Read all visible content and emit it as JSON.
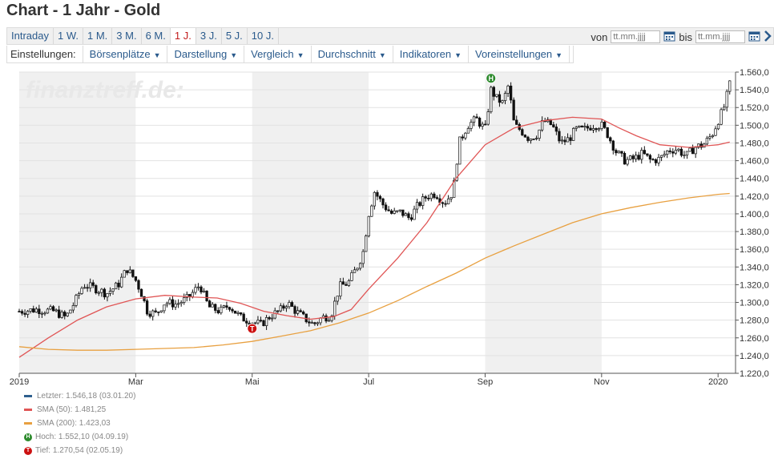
{
  "page": {
    "title": "Chart - 1 Jahr - Gold"
  },
  "range_tabs": [
    "Intraday",
    "1 W.",
    "1 M.",
    "3 M.",
    "6 M.",
    "1 J.",
    "3 J.",
    "5 J.",
    "10 J."
  ],
  "active_range": "1 J.",
  "date_filter": {
    "from_label": "von",
    "to_label": "bis",
    "placeholder": "tt.mm.jjjj"
  },
  "settings": {
    "label": "Einstellungen:",
    "menus": [
      "Börsenplätze",
      "Darstellung",
      "Vergleich",
      "Durchschnitt",
      "Indikatoren",
      "Voreinstellungen"
    ]
  },
  "watermark": "finanztreff.de:",
  "colors": {
    "candle": "#111111",
    "sma50": "#e05555",
    "sma200": "#e8a040",
    "last": "#2e5f8e",
    "high_badge": "#2c8a2c",
    "low_badge": "#cc1111",
    "band": "#f0f0f0"
  },
  "legend": [
    {
      "key": "last",
      "text": "Letzter: 1.546,18 (03.01.20)"
    },
    {
      "key": "sma50",
      "text": "SMA (50): 1.481,25"
    },
    {
      "key": "sma200",
      "text": "SMA (200): 1.423,03"
    },
    {
      "key": "high",
      "badge": "H",
      "text": "Hoch: 1.552,10 (04.09.19)"
    },
    {
      "key": "low",
      "badge": "T",
      "text": "Tief: 1.270,54 (02.05.19)"
    }
  ],
  "chart_data": {
    "type": "line",
    "style": "candlestick",
    "x_range": [
      0,
      12.3
    ],
    "ylim": [
      1220,
      1560
    ],
    "y_ticks": [
      1220,
      1240,
      1260,
      1280,
      1300,
      1320,
      1340,
      1360,
      1380,
      1400,
      1420,
      1440,
      1460,
      1480,
      1500,
      1520,
      1540,
      1560
    ],
    "y_tick_labels": [
      "1.220,0",
      "1.240,0",
      "1.260,0",
      "1.280,0",
      "1.300,0",
      "1.320,0",
      "1.340,0",
      "1.360,0",
      "1.380,0",
      "1.400,0",
      "1.420,0",
      "1.440,0",
      "1.460,0",
      "1.480,0",
      "1.500,0",
      "1.520,0",
      "1.540,0",
      "1.560,0"
    ],
    "x_ticks": [
      {
        "x": 0,
        "label": "2019"
      },
      {
        "x": 2,
        "label": "Mar"
      },
      {
        "x": 4,
        "label": "Mai"
      },
      {
        "x": 6,
        "label": "Jul"
      },
      {
        "x": 8,
        "label": "Sep"
      },
      {
        "x": 10,
        "label": "Nov"
      },
      {
        "x": 12,
        "label": "2020"
      }
    ],
    "shaded_months": [
      [
        0,
        2
      ],
      [
        4,
        6
      ],
      [
        8,
        10
      ]
    ],
    "series": [
      {
        "name": "Letzter",
        "points": [
          [
            0,
            1290
          ],
          [
            0.3,
            1292
          ],
          [
            0.6,
            1290
          ],
          [
            0.8,
            1283
          ],
          [
            0.95,
            1300
          ],
          [
            1.1,
            1320
          ],
          [
            1.3,
            1316
          ],
          [
            1.5,
            1310
          ],
          [
            1.7,
            1320
          ],
          [
            1.85,
            1338
          ],
          [
            2.0,
            1325
          ],
          [
            2.1,
            1310
          ],
          [
            2.2,
            1290
          ],
          [
            2.35,
            1287
          ],
          [
            2.5,
            1300
          ],
          [
            2.7,
            1298
          ],
          [
            2.9,
            1305
          ],
          [
            3.1,
            1320
          ],
          [
            3.25,
            1295
          ],
          [
            3.45,
            1290
          ],
          [
            3.6,
            1297
          ],
          [
            3.8,
            1283
          ],
          [
            4.0,
            1278
          ],
          [
            4.15,
            1275
          ],
          [
            4.3,
            1284
          ],
          [
            4.5,
            1292
          ],
          [
            4.6,
            1300
          ],
          [
            4.75,
            1290
          ],
          [
            4.9,
            1282
          ],
          [
            5.05,
            1275
          ],
          [
            5.2,
            1283
          ],
          [
            5.35,
            1285
          ],
          [
            5.5,
            1318
          ],
          [
            5.65,
            1322
          ],
          [
            5.8,
            1340
          ],
          [
            5.9,
            1355
          ],
          [
            6.0,
            1400
          ],
          [
            6.1,
            1425
          ],
          [
            6.25,
            1410
          ],
          [
            6.4,
            1400
          ],
          [
            6.55,
            1402
          ],
          [
            6.7,
            1395
          ],
          [
            6.85,
            1410
          ],
          [
            7.0,
            1420
          ],
          [
            7.15,
            1423
          ],
          [
            7.3,
            1412
          ],
          [
            7.45,
            1425
          ],
          [
            7.55,
            1480
          ],
          [
            7.7,
            1500
          ],
          [
            7.85,
            1507
          ],
          [
            8.0,
            1495
          ],
          [
            8.1,
            1540
          ],
          [
            8.2,
            1530
          ],
          [
            8.3,
            1525
          ],
          [
            8.4,
            1545
          ],
          [
            8.5,
            1500
          ],
          [
            8.6,
            1495
          ],
          [
            8.75,
            1485
          ],
          [
            8.9,
            1490
          ],
          [
            9.0,
            1505
          ],
          [
            9.15,
            1500
          ],
          [
            9.3,
            1480
          ],
          [
            9.45,
            1485
          ],
          [
            9.55,
            1495
          ],
          [
            9.7,
            1495
          ],
          [
            9.85,
            1500
          ],
          [
            10.0,
            1500
          ],
          [
            10.1,
            1490
          ],
          [
            10.25,
            1470
          ],
          [
            10.4,
            1460
          ],
          [
            10.55,
            1462
          ],
          [
            10.7,
            1468
          ],
          [
            10.85,
            1460
          ],
          [
            11.0,
            1462
          ],
          [
            11.15,
            1472
          ],
          [
            11.3,
            1473
          ],
          [
            11.45,
            1465
          ],
          [
            11.6,
            1475
          ],
          [
            11.75,
            1478
          ],
          [
            11.9,
            1490
          ],
          [
            12.0,
            1505
          ],
          [
            12.1,
            1520
          ],
          [
            12.2,
            1546
          ]
        ]
      },
      {
        "name": "SMA (50)",
        "points": [
          [
            0,
            1238
          ],
          [
            0.5,
            1260
          ],
          [
            1.0,
            1280
          ],
          [
            1.5,
            1295
          ],
          [
            2.0,
            1304
          ],
          [
            2.5,
            1308
          ],
          [
            3.0,
            1306
          ],
          [
            3.4,
            1305
          ],
          [
            3.8,
            1299
          ],
          [
            4.2,
            1290
          ],
          [
            4.6,
            1285
          ],
          [
            5.0,
            1281
          ],
          [
            5.4,
            1284
          ],
          [
            5.7,
            1292
          ],
          [
            6.0,
            1315
          ],
          [
            6.5,
            1350
          ],
          [
            7.0,
            1390
          ],
          [
            7.5,
            1440
          ],
          [
            8.0,
            1478
          ],
          [
            8.5,
            1497
          ],
          [
            9.0,
            1505
          ],
          [
            9.5,
            1509
          ],
          [
            10.0,
            1507
          ],
          [
            10.3,
            1497
          ],
          [
            10.6,
            1488
          ],
          [
            11.0,
            1478
          ],
          [
            11.5,
            1475
          ],
          [
            12.0,
            1478
          ],
          [
            12.2,
            1481
          ]
        ]
      },
      {
        "name": "SMA (200)",
        "points": [
          [
            0,
            1250
          ],
          [
            0.5,
            1247
          ],
          [
            1.0,
            1246
          ],
          [
            1.5,
            1246
          ],
          [
            2.0,
            1247
          ],
          [
            2.5,
            1248
          ],
          [
            3.0,
            1249
          ],
          [
            3.5,
            1252
          ],
          [
            4.0,
            1256
          ],
          [
            4.5,
            1262
          ],
          [
            5.0,
            1268
          ],
          [
            5.5,
            1277
          ],
          [
            6.0,
            1288
          ],
          [
            6.5,
            1302
          ],
          [
            7.0,
            1318
          ],
          [
            7.5,
            1333
          ],
          [
            8.0,
            1350
          ],
          [
            8.5,
            1364
          ],
          [
            9.0,
            1377
          ],
          [
            9.5,
            1390
          ],
          [
            10.0,
            1400
          ],
          [
            10.5,
            1407
          ],
          [
            11.0,
            1413
          ],
          [
            11.5,
            1418
          ],
          [
            12.0,
            1422
          ],
          [
            12.2,
            1423
          ]
        ]
      }
    ],
    "markers": [
      {
        "type": "high",
        "label": "H",
        "x": 8.1,
        "y": 1552.1
      },
      {
        "type": "low",
        "label": "T",
        "x": 4.0,
        "y": 1270.54
      }
    ]
  }
}
